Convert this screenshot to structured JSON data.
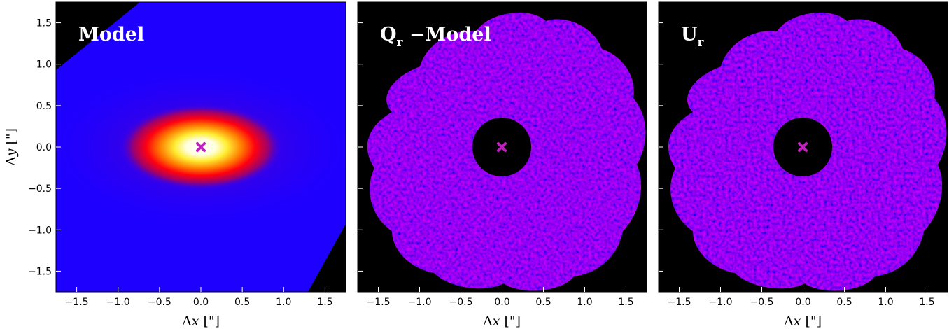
{
  "panels": [
    {
      "id": "model",
      "title": "Model",
      "title_sub": ""
    },
    {
      "id": "qr-model",
      "title": "Q",
      "title_sub": "r",
      "title_suffix": " −Model"
    },
    {
      "id": "ur",
      "title": "U",
      "title_sub": "r"
    }
  ],
  "axes": {
    "xlabel_prefix": "Δ",
    "xlabel_var": "x",
    "xlabel_unit": " [\"]",
    "ylabel_prefix": "Δ",
    "ylabel_var": "y",
    "ylabel_unit": " [\"]",
    "xlim": [
      -1.75,
      1.75
    ],
    "ylim": [
      -1.75,
      1.75
    ],
    "x_ticks": [
      "−1.5",
      "−1.0",
      "−0.5",
      "0.0",
      "0.5",
      "1.0",
      "1.5"
    ],
    "y_ticks": [
      "1.5",
      "1.0",
      "0.5",
      "0.0",
      "−0.5",
      "−1.0",
      "−1.5"
    ]
  },
  "marker": {
    "symbol": "x",
    "color": "#c020c0"
  },
  "colors": {
    "background": "#000000",
    "low": "#1a00ff",
    "mid": "#ff0000",
    "high": "#ffff66",
    "peak": "#ffffff"
  }
}
